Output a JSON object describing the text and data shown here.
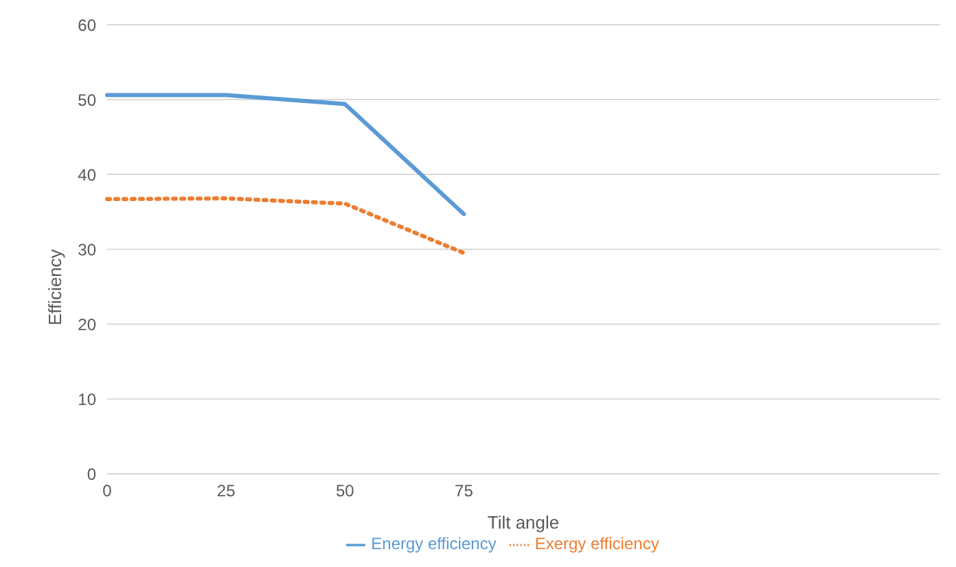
{
  "chart_data": {
    "type": "line",
    "xlabel": "Tilt angle",
    "ylabel": "Efficiency",
    "categories": [
      "0",
      "25",
      "50",
      "75",
      null,
      null,
      null,
      null
    ],
    "series": [
      {
        "name": "Energy efficiency",
        "color": "#5b9bd5",
        "line_style": "solid",
        "values": [
          50.6,
          50.6,
          49.4,
          34.7,
          null,
          null,
          null,
          null
        ]
      },
      {
        "name": "Exergy efficiency",
        "color": "#ed7d31",
        "line_style": "dotted",
        "values": [
          36.7,
          36.8,
          36.1,
          29.5,
          null,
          null,
          null,
          null
        ]
      }
    ],
    "ylim": [
      0,
      60
    ],
    "yticks": [
      0,
      10,
      20,
      30,
      40,
      50,
      60
    ],
    "grid": "y",
    "legend": "bottom",
    "marker": "none"
  }
}
